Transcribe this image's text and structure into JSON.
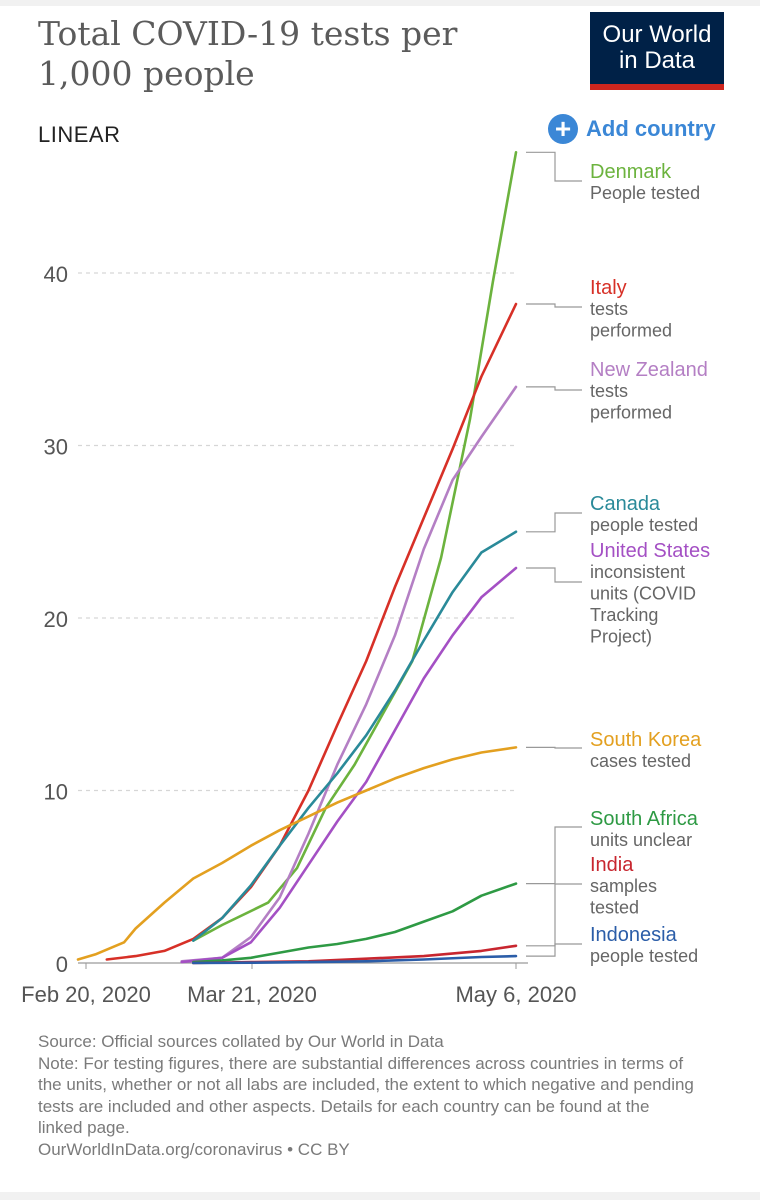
{
  "header": {
    "title_line1": "Total COVID-19 tests per",
    "title_line2": "1,000 people",
    "logo_line1": "Our World",
    "logo_line2": "in Data",
    "scale_toggle": "LINEAR",
    "add_country": "Add country"
  },
  "chart_data": {
    "type": "line",
    "title": "Total COVID-19 tests per 1,000 people",
    "x_axis": {
      "ticks": [
        "Feb 20, 2020",
        "Mar 21, 2020",
        "May 6, 2020"
      ],
      "range": [
        "2020-02-20",
        "2020-05-06"
      ]
    },
    "y_axis": {
      "ticks": [
        0,
        10,
        20,
        30,
        40
      ],
      "range": [
        0,
        47
      ],
      "grid": true
    },
    "legend_placement": "right, labels at line ends",
    "series": [
      {
        "name": "Denmark",
        "subtitle": "People tested",
        "color": "#6cb33e",
        "points": [
          [
            "2020-03-11",
            1.3
          ],
          [
            "2020-03-16",
            2.2
          ],
          [
            "2020-03-24",
            3.5
          ],
          [
            "2020-03-29",
            5.5
          ],
          [
            "2020-04-03",
            9.0
          ],
          [
            "2020-04-08",
            11.5
          ],
          [
            "2020-04-13",
            14.5
          ],
          [
            "2020-04-18",
            17.5
          ],
          [
            "2020-04-23",
            23.5
          ],
          [
            "2020-04-28",
            31.5
          ],
          [
            "2020-05-02",
            39.5
          ],
          [
            "2020-05-06",
            47.0
          ]
        ]
      },
      {
        "name": "Italy",
        "subtitle": "tests performed",
        "color": "#d73027",
        "points": [
          [
            "2020-02-25",
            0.2
          ],
          [
            "2020-03-01",
            0.4
          ],
          [
            "2020-03-06",
            0.7
          ],
          [
            "2020-03-11",
            1.4
          ],
          [
            "2020-03-16",
            2.6
          ],
          [
            "2020-03-21",
            4.4
          ],
          [
            "2020-03-26",
            6.8
          ],
          [
            "2020-03-31",
            10.0
          ],
          [
            "2020-04-05",
            13.8
          ],
          [
            "2020-04-10",
            17.5
          ],
          [
            "2020-04-15",
            21.8
          ],
          [
            "2020-04-20",
            25.8
          ],
          [
            "2020-04-25",
            29.8
          ],
          [
            "2020-04-30",
            34.0
          ],
          [
            "2020-05-06",
            38.2
          ]
        ]
      },
      {
        "name": "New Zealand",
        "subtitle": "tests performed",
        "color": "#b47fc4",
        "points": [
          [
            "2020-03-09",
            0.1
          ],
          [
            "2020-03-16",
            0.3
          ],
          [
            "2020-03-21",
            1.5
          ],
          [
            "2020-03-26",
            3.8
          ],
          [
            "2020-03-31",
            7.5
          ],
          [
            "2020-04-05",
            11.5
          ],
          [
            "2020-04-10",
            15.0
          ],
          [
            "2020-04-15",
            19.0
          ],
          [
            "2020-04-20",
            24.0
          ],
          [
            "2020-04-25",
            28.0
          ],
          [
            "2020-04-30",
            30.5
          ],
          [
            "2020-05-06",
            33.4
          ]
        ]
      },
      {
        "name": "Canada",
        "subtitle": "people tested",
        "color": "#2a8a99",
        "points": [
          [
            "2020-03-11",
            1.3
          ],
          [
            "2020-03-16",
            2.6
          ],
          [
            "2020-03-21",
            4.5
          ],
          [
            "2020-03-26",
            6.8
          ],
          [
            "2020-03-31",
            9.0
          ],
          [
            "2020-04-05",
            11.0
          ],
          [
            "2020-04-10",
            13.2
          ],
          [
            "2020-04-15",
            15.8
          ],
          [
            "2020-04-20",
            18.7
          ],
          [
            "2020-04-25",
            21.5
          ],
          [
            "2020-04-30",
            23.8
          ],
          [
            "2020-05-06",
            25.0
          ]
        ]
      },
      {
        "name": "United States",
        "subtitle": "inconsistent units (COVID Tracking Project)",
        "color": "#a450c4",
        "points": [
          [
            "2020-03-09",
            0.05
          ],
          [
            "2020-03-16",
            0.3
          ],
          [
            "2020-03-21",
            1.2
          ],
          [
            "2020-03-26",
            3.2
          ],
          [
            "2020-03-31",
            5.7
          ],
          [
            "2020-04-05",
            8.2
          ],
          [
            "2020-04-10",
            10.5
          ],
          [
            "2020-04-15",
            13.5
          ],
          [
            "2020-04-20",
            16.5
          ],
          [
            "2020-04-25",
            19.0
          ],
          [
            "2020-04-30",
            21.2
          ],
          [
            "2020-05-06",
            22.9
          ]
        ]
      },
      {
        "name": "South Korea",
        "subtitle": "cases tested",
        "color": "#e3a020",
        "points": [
          [
            "2020-02-20",
            0.2
          ],
          [
            "2020-02-23",
            0.5
          ],
          [
            "2020-02-28",
            1.2
          ],
          [
            "2020-03-01",
            2.0
          ],
          [
            "2020-03-06",
            3.5
          ],
          [
            "2020-03-11",
            4.9
          ],
          [
            "2020-03-16",
            5.8
          ],
          [
            "2020-03-21",
            6.8
          ],
          [
            "2020-03-26",
            7.7
          ],
          [
            "2020-03-31",
            8.5
          ],
          [
            "2020-04-05",
            9.3
          ],
          [
            "2020-04-10",
            10.0
          ],
          [
            "2020-04-15",
            10.7
          ],
          [
            "2020-04-20",
            11.3
          ],
          [
            "2020-04-25",
            11.8
          ],
          [
            "2020-04-30",
            12.2
          ],
          [
            "2020-05-06",
            12.5
          ]
        ]
      },
      {
        "name": "South Africa",
        "subtitle": "units unclear",
        "color": "#2e9a44",
        "points": [
          [
            "2020-03-11",
            0.05
          ],
          [
            "2020-03-16",
            0.15
          ],
          [
            "2020-03-21",
            0.3
          ],
          [
            "2020-03-26",
            0.6
          ],
          [
            "2020-03-31",
            0.9
          ],
          [
            "2020-04-05",
            1.1
          ],
          [
            "2020-04-10",
            1.4
          ],
          [
            "2020-04-15",
            1.8
          ],
          [
            "2020-04-20",
            2.4
          ],
          [
            "2020-04-25",
            3.0
          ],
          [
            "2020-04-30",
            3.9
          ],
          [
            "2020-05-06",
            4.6
          ]
        ]
      },
      {
        "name": "India",
        "subtitle": "samples tested",
        "color": "#c8262f",
        "points": [
          [
            "2020-03-11",
            0.0
          ],
          [
            "2020-03-21",
            0.05
          ],
          [
            "2020-03-31",
            0.1
          ],
          [
            "2020-04-10",
            0.25
          ],
          [
            "2020-04-20",
            0.4
          ],
          [
            "2020-04-30",
            0.7
          ],
          [
            "2020-05-06",
            1.0
          ]
        ]
      },
      {
        "name": "Indonesia",
        "subtitle": "people tested",
        "color": "#2b5da8",
        "points": [
          [
            "2020-03-11",
            0.0
          ],
          [
            "2020-03-21",
            0.02
          ],
          [
            "2020-03-31",
            0.05
          ],
          [
            "2020-04-10",
            0.1
          ],
          [
            "2020-04-20",
            0.2
          ],
          [
            "2020-04-30",
            0.35
          ],
          [
            "2020-05-06",
            0.4
          ]
        ]
      }
    ]
  },
  "footer": {
    "source": "Source: Official sources collated by Our World in Data",
    "note": "Note: For testing figures, there are substantial differences across countries in terms of the units, whether or not all labs are included, the extent to which negative and pending tests are included and other aspects. Details for each country can be found at the linked page.",
    "link": "OurWorldInData.org/coronavirus",
    "license": " • CC BY"
  }
}
